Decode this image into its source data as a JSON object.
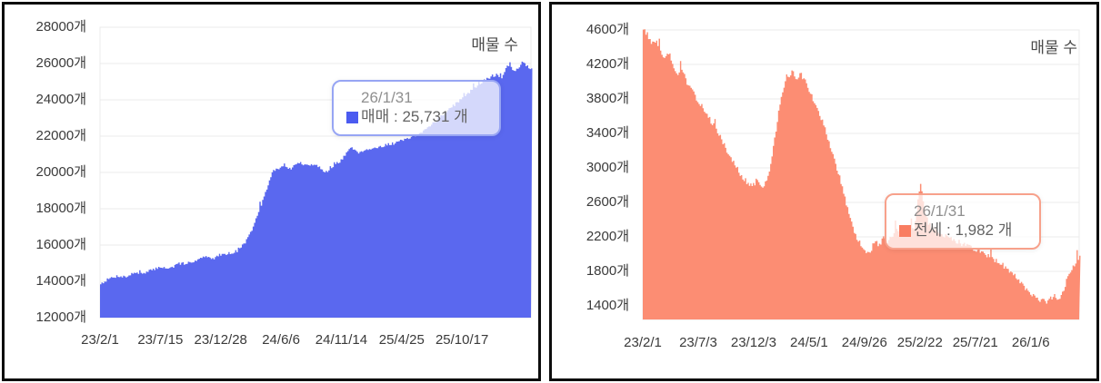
{
  "colors": {
    "panel_border": "#0d0d0d",
    "grid": "#ebebeb",
    "axis_text": "#3a3a3a",
    "title_text": "#4a4a4a",
    "tooltip_bg": "rgba(255,255,255,0.74)"
  },
  "chart_data": [
    {
      "id": "sale-listings",
      "type": "area",
      "title": "매물 수",
      "series_name": "매매",
      "unit": "개",
      "fill_color": "#5a68ef",
      "marker_color": "#4b5bf0",
      "tooltip_border_color": "#97a5f4",
      "ylim": [
        12000,
        28000
      ],
      "y_step": 2000,
      "y_tick_labels": [
        "28000개",
        "26000개",
        "24000개",
        "22000개",
        "20000개",
        "18000개",
        "16000개",
        "14000개",
        "12000개"
      ],
      "x_tick_labels": [
        "23/2/1",
        "23/7/15",
        "23/12/28",
        "24/6/6",
        "24/11/14",
        "25/4/25",
        "25/10/17"
      ],
      "x_range": [
        "23/2/1",
        "26/1/31"
      ],
      "grid": true,
      "legend_position": "top-right",
      "final_point": {
        "date": "26/1/31",
        "value": 25731
      },
      "tooltip": {
        "date": "26/1/31",
        "series": "매매",
        "value": "25,731",
        "unit": "개",
        "text": "매매 : 25,731 개"
      },
      "keypoints_format": "[fraction_of_x_range, listings_count]",
      "keypoints": [
        [
          0,
          13880
        ],
        [
          0.02,
          14150
        ],
        [
          0.04,
          14300
        ],
        [
          0.06,
          14250
        ],
        [
          0.08,
          14500
        ],
        [
          0.1,
          14400
        ],
        [
          0.12,
          14650
        ],
        [
          0.14,
          14800
        ],
        [
          0.16,
          14700
        ],
        [
          0.18,
          14950
        ],
        [
          0.2,
          15000
        ],
        [
          0.22,
          15150
        ],
        [
          0.24,
          15350
        ],
        [
          0.26,
          15250
        ],
        [
          0.28,
          15500
        ],
        [
          0.3,
          15550
        ],
        [
          0.32,
          15700
        ],
        [
          0.34,
          16300
        ],
        [
          0.36,
          17300
        ],
        [
          0.38,
          18700
        ],
        [
          0.4,
          20100
        ],
        [
          0.42,
          20300
        ],
        [
          0.44,
          20200
        ],
        [
          0.46,
          20550
        ],
        [
          0.48,
          20350
        ],
        [
          0.5,
          20500
        ],
        [
          0.52,
          19950
        ],
        [
          0.54,
          20350
        ],
        [
          0.56,
          20700
        ],
        [
          0.58,
          21400
        ],
        [
          0.6,
          21100
        ],
        [
          0.62,
          21300
        ],
        [
          0.64,
          21350
        ],
        [
          0.66,
          21500
        ],
        [
          0.68,
          21600
        ],
        [
          0.7,
          21750
        ],
        [
          0.72,
          21900
        ],
        [
          0.74,
          22100
        ],
        [
          0.76,
          22500
        ],
        [
          0.78,
          22900
        ],
        [
          0.8,
          23300
        ],
        [
          0.82,
          23700
        ],
        [
          0.84,
          24100
        ],
        [
          0.86,
          24500
        ],
        [
          0.88,
          24900
        ],
        [
          0.9,
          25200
        ],
        [
          0.92,
          25400
        ],
        [
          0.93,
          25100
        ],
        [
          0.94,
          25700
        ],
        [
          0.95,
          26000
        ],
        [
          0.96,
          25500
        ],
        [
          0.97,
          25800
        ],
        [
          0.98,
          26150
        ],
        [
          0.99,
          25850
        ],
        [
          1.0,
          25731
        ]
      ],
      "noise_amp": 80,
      "spike_amp": 320,
      "clamp": [
        13350,
        26400
      ],
      "seed": 7
    },
    {
      "id": "jeonse-listings",
      "type": "area",
      "title": "매물 수",
      "series_name": "전세",
      "unit": "개",
      "fill_color": "#fc8d73",
      "marker_color": "#f97d61",
      "tooltip_border_color": "#f7a18b",
      "ylim": [
        1400,
        4600
      ],
      "y_step": 400,
      "y_tick_labels": [
        "4600개",
        "4200개",
        "3800개",
        "3400개",
        "3000개",
        "2600개",
        "2200개",
        "1800개",
        "1400개"
      ],
      "x_tick_labels": [
        "23/2/1",
        "23/7/3",
        "23/12/3",
        "24/5/1",
        "24/9/26",
        "25/2/22",
        "25/7/21",
        "26/1/6"
      ],
      "x_range": [
        "23/2/1",
        "26/1/31"
      ],
      "grid": true,
      "legend_position": "top-right",
      "final_point": {
        "date": "26/1/31",
        "value": 1982
      },
      "tooltip": {
        "date": "26/1/31",
        "series": "전세",
        "value": "1,982",
        "unit": "개",
        "text": "전세 : 1,982 개"
      },
      "keypoints_format": "[fraction_of_x_range, listings_count]",
      "keypoints": [
        [
          0,
          4620
        ],
        [
          0.01,
          4540
        ],
        [
          0.02,
          4430
        ],
        [
          0.03,
          4480
        ],
        [
          0.04,
          4350
        ],
        [
          0.05,
          4280
        ],
        [
          0.06,
          4330
        ],
        [
          0.07,
          4180
        ],
        [
          0.08,
          4060
        ],
        [
          0.09,
          4150
        ],
        [
          0.1,
          3980
        ],
        [
          0.11,
          3900
        ],
        [
          0.12,
          3820
        ],
        [
          0.13,
          3750
        ],
        [
          0.14,
          3680
        ],
        [
          0.15,
          3580
        ],
        [
          0.16,
          3500
        ],
        [
          0.17,
          3420
        ],
        [
          0.18,
          3320
        ],
        [
          0.19,
          3220
        ],
        [
          0.2,
          3120
        ],
        [
          0.21,
          3030
        ],
        [
          0.22,
          2950
        ],
        [
          0.23,
          2880
        ],
        [
          0.24,
          2820
        ],
        [
          0.25,
          2780
        ],
        [
          0.26,
          2860
        ],
        [
          0.27,
          2760
        ],
        [
          0.28,
          2830
        ],
        [
          0.29,
          2980
        ],
        [
          0.3,
          3300
        ],
        [
          0.31,
          3650
        ],
        [
          0.32,
          3900
        ],
        [
          0.33,
          4050
        ],
        [
          0.34,
          4120
        ],
        [
          0.35,
          4040
        ],
        [
          0.36,
          4100
        ],
        [
          0.37,
          4010
        ],
        [
          0.38,
          3900
        ],
        [
          0.39,
          3790
        ],
        [
          0.4,
          3680
        ],
        [
          0.41,
          3550
        ],
        [
          0.42,
          3400
        ],
        [
          0.43,
          3220
        ],
        [
          0.44,
          3050
        ],
        [
          0.45,
          2880
        ],
        [
          0.46,
          2700
        ],
        [
          0.47,
          2480
        ],
        [
          0.48,
          2300
        ],
        [
          0.49,
          2180
        ],
        [
          0.5,
          2090
        ],
        [
          0.51,
          2030
        ],
        [
          0.52,
          2020
        ],
        [
          0.53,
          2150
        ],
        [
          0.54,
          2100
        ],
        [
          0.55,
          2180
        ],
        [
          0.56,
          2140
        ],
        [
          0.57,
          2200
        ],
        [
          0.58,
          2250
        ],
        [
          0.59,
          2220
        ],
        [
          0.6,
          2280
        ],
        [
          0.61,
          2320
        ],
        [
          0.62,
          2300
        ],
        [
          0.625,
          2450
        ],
        [
          0.635,
          2840
        ],
        [
          0.645,
          2520
        ],
        [
          0.655,
          2340
        ],
        [
          0.67,
          2280
        ],
        [
          0.69,
          2220
        ],
        [
          0.71,
          2170
        ],
        [
          0.73,
          2120
        ],
        [
          0.75,
          2080
        ],
        [
          0.77,
          2030
        ],
        [
          0.79,
          1980
        ],
        [
          0.81,
          1920
        ],
        [
          0.83,
          1850
        ],
        [
          0.85,
          1750
        ],
        [
          0.87,
          1640
        ],
        [
          0.89,
          1540
        ],
        [
          0.91,
          1470
        ],
        [
          0.925,
          1440
        ],
        [
          0.94,
          1520
        ],
        [
          0.95,
          1470
        ],
        [
          0.96,
          1560
        ],
        [
          0.97,
          1680
        ],
        [
          0.98,
          1820
        ],
        [
          0.99,
          1900
        ],
        [
          1.0,
          1982
        ]
      ],
      "noise_amp": 30,
      "spike_amp": 130,
      "clamp": [
        1415,
        4630
      ],
      "seed": 13
    }
  ]
}
